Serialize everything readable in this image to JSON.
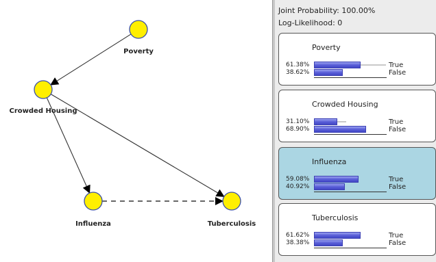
{
  "network": {
    "nodes": [
      {
        "id": "poverty",
        "label": "Poverty"
      },
      {
        "id": "crowded_housing",
        "label": "Crowded Housing"
      },
      {
        "id": "influenza",
        "label": "Influenza"
      },
      {
        "id": "tuberculosis",
        "label": "Tuberculosis"
      }
    ],
    "edges": [
      {
        "from": "poverty",
        "to": "crowded_housing",
        "style": "solid"
      },
      {
        "from": "crowded_housing",
        "to": "influenza",
        "style": "solid"
      },
      {
        "from": "crowded_housing",
        "to": "tuberculosis",
        "style": "solid"
      },
      {
        "from": "influenza",
        "to": "tuberculosis",
        "style": "dashed"
      }
    ],
    "colors": {
      "node_fill": "#ffef00",
      "node_stroke": "#3a4fa8",
      "edge": "#333333"
    }
  },
  "stats": {
    "joint_probability": "Joint Probability: 100.00%",
    "log_likelihood": "Log-Likelihood: 0"
  },
  "panels": [
    {
      "name": "Poverty",
      "selected": false,
      "states": [
        {
          "pct": "61.38%",
          "label": "True",
          "value": 0.6138,
          "ghost": 0.82
        },
        {
          "pct": "38.62%",
          "label": "False",
          "value": 0.3862,
          "ghost": 0
        }
      ]
    },
    {
      "name": "Crowded Housing",
      "selected": false,
      "states": [
        {
          "pct": "31.10%",
          "label": "True",
          "value": 0.311,
          "ghost": 0.37
        },
        {
          "pct": "68.90%",
          "label": "False",
          "value": 0.689,
          "ghost": 0
        }
      ]
    },
    {
      "name": "Influenza",
      "selected": true,
      "states": [
        {
          "pct": "59.08%",
          "label": "True",
          "value": 0.5908,
          "ghost": 0
        },
        {
          "pct": "40.92%",
          "label": "False",
          "value": 0.4092,
          "ghost": 0
        }
      ]
    },
    {
      "name": "Tuberculosis",
      "selected": false,
      "states": [
        {
          "pct": "61.62%",
          "label": "True",
          "value": 0.6162,
          "ghost": 0
        },
        {
          "pct": "38.38%",
          "label": "False",
          "value": 0.3838,
          "ghost": 0
        }
      ]
    }
  ],
  "colors": {
    "selected_panel": "#abd6e3",
    "bar": "#5a5fd8"
  }
}
